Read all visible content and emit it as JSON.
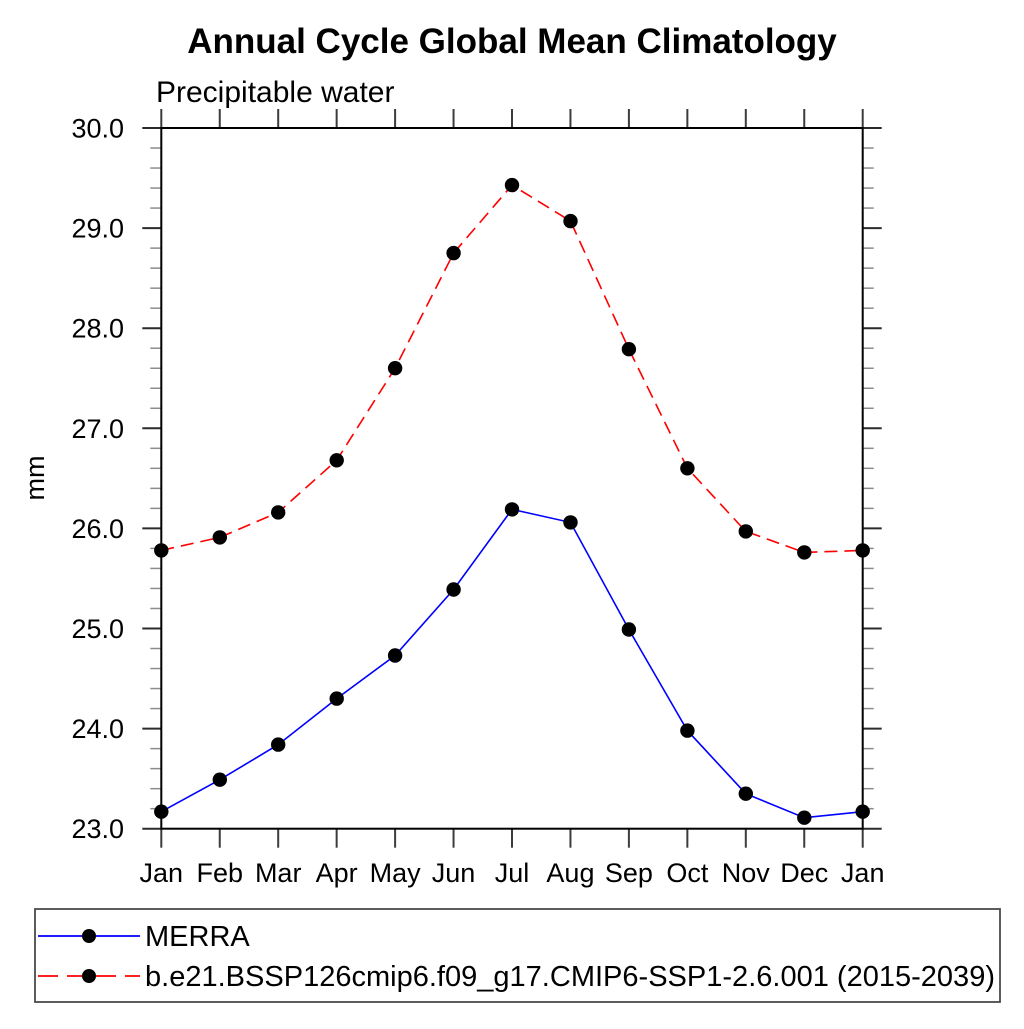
{
  "page": {
    "background": "#ffffff"
  },
  "chart_data": {
    "type": "line",
    "title": "Annual Cycle Global Mean Climatology",
    "subtitle": "Precipitable water",
    "ylabel": "mm",
    "xlabel": "",
    "categories": [
      "Jan",
      "Feb",
      "Mar",
      "Apr",
      "May",
      "Jun",
      "Jul",
      "Aug",
      "Sep",
      "Oct",
      "Nov",
      "Dec",
      "Jan"
    ],
    "ylim": [
      23.0,
      30.0
    ],
    "y_major_step": 1.0,
    "y_minor_step": 0.2,
    "y_tick_labels": [
      "30.0",
      "29.0",
      "28.0",
      "27.0",
      "26.0",
      "25.0",
      "24.0",
      "23.0"
    ],
    "grid": false,
    "frame_color": "#000000",
    "legend_position": "bottom-left-box",
    "series": [
      {
        "name": "MERRA",
        "color": "#0000ff",
        "line_style": "solid",
        "marker": "filled-circle",
        "marker_color": "#000000",
        "values": [
          23.17,
          23.49,
          23.84,
          24.3,
          24.73,
          25.39,
          26.19,
          26.06,
          24.99,
          23.98,
          23.35,
          23.11,
          23.17
        ]
      },
      {
        "name": "b.e21.BSSP126cmip6.f09_g17.CMIP6-SSP1-2.6.001 (2015-2039)",
        "color": "#ff0000",
        "line_style": "dashed",
        "marker": "filled-circle",
        "marker_color": "#000000",
        "values": [
          25.78,
          25.91,
          26.16,
          26.68,
          27.6,
          28.75,
          29.43,
          29.07,
          27.79,
          26.6,
          25.97,
          25.76,
          25.78
        ]
      }
    ]
  }
}
